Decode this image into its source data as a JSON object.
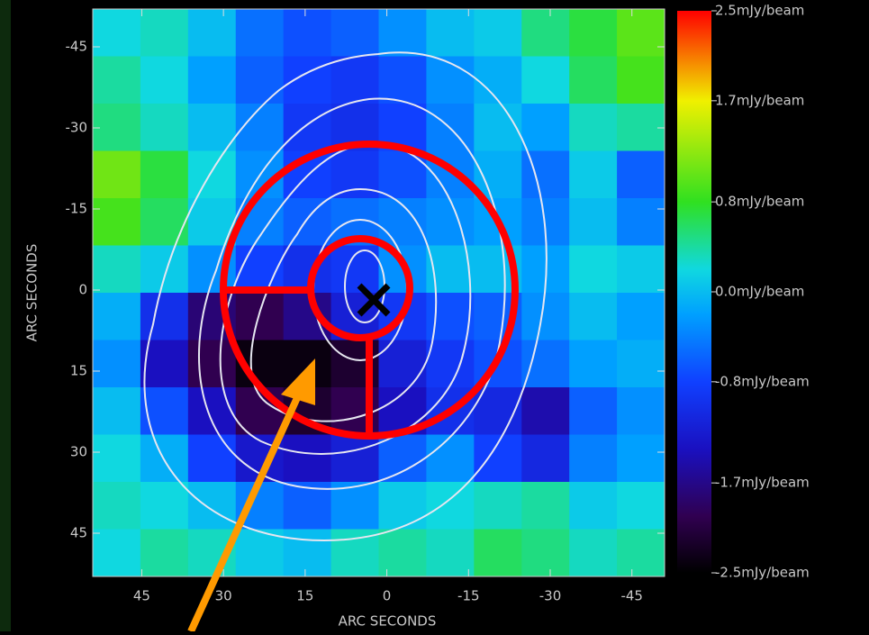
{
  "chart_data": {
    "type": "heatmap",
    "xlabel": "ARC SECONDS",
    "ylabel": "ARC SECONDS",
    "xlim": [
      54,
      -51
    ],
    "ylim": [
      -52,
      53
    ],
    "xticks": [
      45,
      30,
      15,
      0,
      -15,
      -30,
      -45
    ],
    "yticks": [
      -45,
      -30,
      -15,
      0,
      15,
      30,
      45
    ],
    "z": [
      [
        0.2,
        0.3,
        0.0,
        -0.5,
        -0.7,
        -0.6,
        -0.3,
        0.0,
        0.1,
        0.5,
        0.7,
        1.0
      ],
      [
        0.4,
        0.2,
        -0.2,
        -0.6,
        -0.8,
        -0.9,
        -0.7,
        -0.3,
        -0.1,
        0.2,
        0.6,
        0.9
      ],
      [
        0.5,
        0.3,
        0.0,
        -0.4,
        -0.9,
        -1.0,
        -0.8,
        -0.4,
        0.0,
        -0.2,
        0.3,
        0.4
      ],
      [
        1.1,
        0.7,
        0.2,
        -0.3,
        -0.8,
        -0.9,
        -0.7,
        -0.4,
        -0.1,
        -0.5,
        0.1,
        -0.6
      ],
      [
        0.9,
        0.6,
        0.1,
        -0.4,
        -0.6,
        -0.5,
        -0.4,
        -0.3,
        -0.2,
        -0.4,
        0.0,
        -0.4
      ],
      [
        0.3,
        0.1,
        -0.3,
        -0.8,
        -1.0,
        -0.9,
        -0.3,
        0.0,
        0.0,
        -0.2,
        0.2,
        0.1
      ],
      [
        -0.1,
        -1.0,
        -1.8,
        -2.0,
        -1.7,
        -1.2,
        -0.9,
        -0.7,
        -0.6,
        -0.3,
        0.0,
        -0.2
      ],
      [
        -0.3,
        -1.4,
        -2.0,
        -2.4,
        -2.4,
        -2.2,
        -1.2,
        -0.9,
        -0.7,
        -0.5,
        -0.2,
        -0.1
      ],
      [
        0.0,
        -0.7,
        -1.4,
        -2.0,
        -2.2,
        -2.0,
        -1.4,
        -1.0,
        -1.1,
        -1.5,
        -0.6,
        -0.3
      ],
      [
        0.2,
        -0.1,
        -0.8,
        -1.3,
        -1.4,
        -1.2,
        -0.6,
        -0.3,
        -0.8,
        -1.1,
        -0.4,
        -0.2
      ],
      [
        0.3,
        0.2,
        0.0,
        -0.4,
        -0.6,
        -0.3,
        0.1,
        0.2,
        0.3,
        0.4,
        0.1,
        0.2
      ],
      [
        0.2,
        0.4,
        0.3,
        0.1,
        0.0,
        0.3,
        0.4,
        0.3,
        0.6,
        0.5,
        0.3,
        0.4
      ]
    ],
    "colorscale": [
      [
        -2.5,
        "#000000"
      ],
      [
        -2.0,
        "#300050"
      ],
      [
        -1.4,
        "#1a10c0"
      ],
      [
        -0.8,
        "#1040ff"
      ],
      [
        -0.2,
        "#00a0ff"
      ],
      [
        0.2,
        "#10d8e0"
      ],
      [
        0.8,
        "#30e020"
      ],
      [
        1.7,
        "#f0f000"
      ],
      [
        2.5,
        "#ff0000"
      ]
    ],
    "colorbar_lim": [
      -2.5,
      2.5
    ],
    "colorbar_ticks": [
      {
        "value": 2.5,
        "label": "2.5mJy/beam"
      },
      {
        "value": 1.7,
        "label": "1.7mJy/beam"
      },
      {
        "value": 0.8,
        "label": "0.8mJy/beam"
      },
      {
        "value": 0.0,
        "label": "0.0mJy/beam"
      },
      {
        "value": -0.8,
        "label": "-0.8mJy/beam"
      },
      {
        "value": -1.7,
        "label": "-1.7mJy/beam"
      },
      {
        "value": -2.5,
        "label": "-2.5mJy/beam"
      }
    ]
  }
}
